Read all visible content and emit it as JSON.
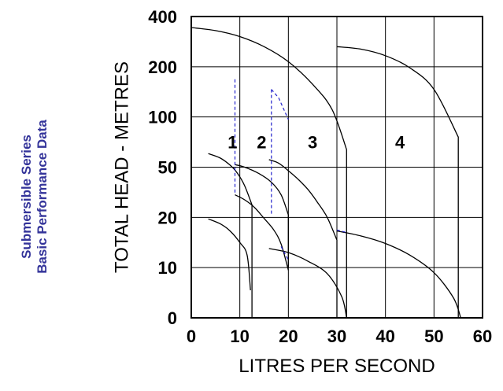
{
  "side_title": {
    "line1": "Submersible Series",
    "line2": "Basic Performance Data"
  },
  "colors": {
    "axis": "#000000",
    "grid": "#000000",
    "curve": "#000000",
    "crossover": "#2222cc",
    "side_title": "#34349a"
  },
  "chart_data": {
    "type": "line",
    "title": "",
    "xlabel": "LITRES PER SECOND",
    "ylabel": "TOTAL HEAD - METRES",
    "xlim": [
      0,
      60
    ],
    "x_ticks": [
      0,
      10,
      20,
      30,
      40,
      50,
      60
    ],
    "y_tick_labels": [
      "0",
      "10",
      "20",
      "50",
      "100",
      "200",
      "400"
    ],
    "y_scale": "nonlinear (category-spaced)",
    "grid": true,
    "regions": [
      {
        "label": "1",
        "x": 8.5,
        "y_index": 3.5
      },
      {
        "label": "2",
        "x": 14.5,
        "y_index": 3.5
      },
      {
        "label": "3",
        "x": 25,
        "y_index": 3.5
      },
      {
        "label": "4",
        "x": 43,
        "y_index": 3.5
      }
    ],
    "curves": [
      {
        "style": "solid",
        "points": [
          [
            3.5,
            3.27
          ],
          [
            6,
            3.18
          ],
          [
            8,
            3.04
          ],
          [
            9.5,
            2.88
          ],
          [
            11,
            2.63
          ],
          [
            12.5,
            2.25
          ]
        ],
        "vertical_drop_to": 0
      },
      {
        "style": "solid",
        "points": [
          [
            3.5,
            1.97
          ],
          [
            6,
            1.87
          ],
          [
            8,
            1.73
          ],
          [
            10,
            1.5
          ],
          [
            11.5,
            1.25
          ],
          [
            12.2,
            0.55
          ]
        ]
      },
      {
        "style": "solid",
        "points": [
          [
            9,
            3.05
          ],
          [
            11,
            3.0
          ],
          [
            14,
            2.87
          ],
          [
            16.5,
            2.7
          ],
          [
            18.5,
            2.45
          ],
          [
            20,
            2.05
          ]
        ],
        "vertical_drop_to": 1.0
      },
      {
        "style": "solid",
        "points": [
          [
            9,
            2.45
          ],
          [
            11,
            2.35
          ],
          [
            13,
            2.2
          ],
          [
            15,
            1.98
          ],
          [
            17,
            1.75
          ],
          [
            18.5,
            1.47
          ],
          [
            20,
            0.95
          ]
        ]
      },
      {
        "style": "solid",
        "points": [
          [
            0,
            5.78
          ],
          [
            5,
            5.72
          ],
          [
            10,
            5.6
          ],
          [
            15,
            5.4
          ],
          [
            20,
            5.1
          ],
          [
            25,
            4.65
          ],
          [
            29,
            4.15
          ],
          [
            32,
            3.35
          ]
        ],
        "vertical_drop_to": 0
      },
      {
        "style": "solid",
        "points": [
          [
            16,
            3.15
          ],
          [
            18,
            3.08
          ],
          [
            20,
            2.93
          ],
          [
            22,
            2.76
          ],
          [
            24,
            2.56
          ],
          [
            26,
            2.3
          ],
          [
            28,
            2.0
          ],
          [
            30,
            1.55
          ]
        ],
        "vertical_drop_to": 0
      },
      {
        "style": "solid",
        "points": [
          [
            16,
            1.38
          ],
          [
            20,
            1.3
          ],
          [
            24,
            1.13
          ],
          [
            28,
            0.88
          ],
          [
            31,
            0.42
          ],
          [
            32,
            0.0
          ]
        ]
      },
      {
        "style": "solid",
        "points": [
          [
            30,
            5.4
          ],
          [
            35,
            5.35
          ],
          [
            40,
            5.22
          ],
          [
            45,
            4.98
          ],
          [
            50,
            4.55
          ],
          [
            55,
            3.6
          ]
        ],
        "vertical_drop_to": 0
      },
      {
        "style": "solid",
        "points": [
          [
            30,
            1.73
          ],
          [
            35,
            1.63
          ],
          [
            40,
            1.48
          ],
          [
            45,
            1.25
          ],
          [
            50,
            0.9
          ],
          [
            54,
            0.4
          ],
          [
            55.5,
            0.0
          ]
        ]
      },
      {
        "style": "dashed",
        "points": [
          [
            9,
            4.75
          ],
          [
            9,
            2.45
          ]
        ]
      },
      {
        "style": "dashed",
        "points": [
          [
            16.5,
            4.55
          ],
          [
            16.5,
            2.05
          ]
        ]
      },
      {
        "style": "dashed",
        "points": [
          [
            16.5,
            4.55
          ],
          [
            18,
            4.38
          ],
          [
            20,
            3.95
          ]
        ]
      },
      {
        "style": "dashed",
        "points": [
          [
            18.5,
            1.42
          ],
          [
            20,
            1.15
          ]
        ]
      },
      {
        "style": "dashed",
        "points": [
          [
            30,
            1.75
          ],
          [
            32,
            1.7
          ]
        ]
      }
    ]
  }
}
